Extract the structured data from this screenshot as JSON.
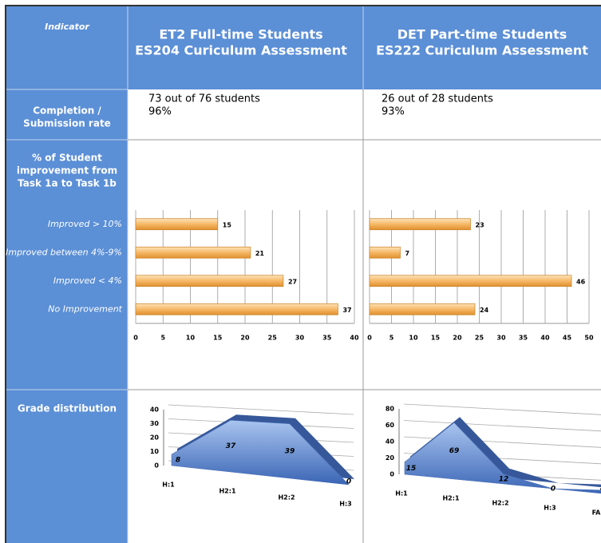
{
  "table": {
    "header": {
      "indicator": "Indicator",
      "columns": [
        [
          "ET2 Full-time Students",
          "ES204 Curiculum Assessment"
        ],
        [
          "DET Part-time Students",
          "ES222 Curiculum Assessment"
        ]
      ]
    },
    "completion": {
      "label": [
        "Completion /",
        "Submission rate"
      ],
      "cells": [
        [
          "73 out of 76 students",
          "96%"
        ],
        [
          "26 out of 28 students",
          "93%"
        ]
      ]
    },
    "improvement": {
      "label": [
        "% of Student",
        "improvement from",
        "Task 1a to Task 1b"
      ]
    },
    "grades": {
      "label": "Grade distribution"
    }
  },
  "chart_data": [
    {
      "type": "hbar",
      "categories": [
        "Improved > 10%",
        "Improved between 4%-9%",
        "Improved < 4%",
        "No Improvement"
      ],
      "values": [
        15,
        21,
        27,
        37
      ],
      "color": "#f2a545",
      "xlim": [
        0,
        40
      ],
      "xticks": [
        0,
        5,
        10,
        15,
        20,
        25,
        30,
        35,
        40
      ],
      "grid": true
    },
    {
      "type": "hbar",
      "values": [
        23,
        7,
        46,
        24
      ],
      "color": "#f2a545",
      "xlim": [
        0,
        50
      ],
      "xticks": [
        0,
        5,
        10,
        15,
        20,
        25,
        30,
        35,
        40,
        45,
        50
      ],
      "grid": true
    },
    {
      "type": "area3d",
      "categories": [
        "H:1",
        "H2:1",
        "H2:2",
        "H:3"
      ],
      "values": [
        8,
        37,
        39,
        0
      ],
      "color": "#5b86cc",
      "ylim": [
        0,
        40
      ],
      "yticks": [
        0,
        10,
        20,
        30,
        40
      ],
      "grid": true
    },
    {
      "type": "area3d",
      "categories": [
        "H:1",
        "H2:1",
        "H2:2",
        "H:3",
        "FAIL"
      ],
      "values": [
        15,
        69,
        12,
        0,
        4
      ],
      "color": "#5b86cc",
      "ylim": [
        0,
        80
      ],
      "yticks": [
        0,
        20,
        40,
        60,
        80
      ],
      "grid": true
    }
  ]
}
